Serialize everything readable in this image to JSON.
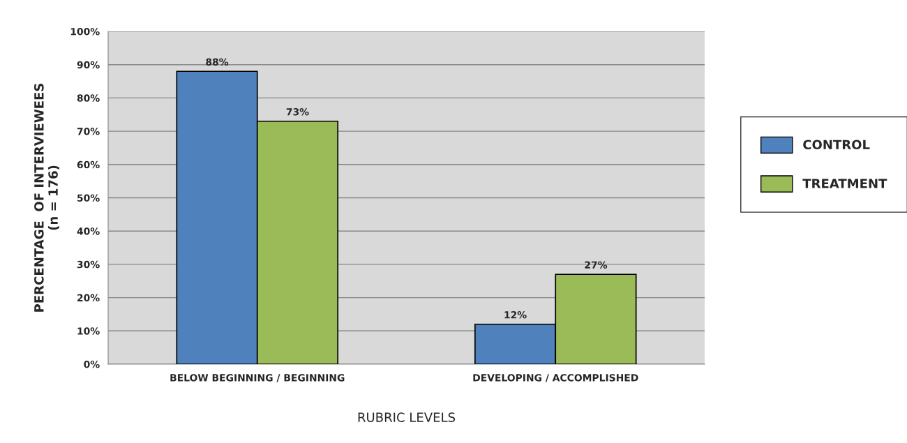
{
  "chart_data": {
    "type": "bar",
    "xlabel": "RUBRIC LEVELS",
    "ylabel": "PERCENTAGE  OF INTERVIEWEES\n(n = 176)",
    "categories": [
      "BELOW BEGINNING / BEGINNING",
      "DEVELOPING / ACCOMPLISHED"
    ],
    "series": [
      {
        "name": "CONTROL",
        "color": "#4f81bd",
        "values": [
          88,
          12
        ],
        "value_labels": [
          "88%",
          "12%"
        ]
      },
      {
        "name": "TREATMENT",
        "color": "#9bbb59",
        "values": [
          73,
          27
        ],
        "value_labels": [
          "73%",
          "27%"
        ]
      }
    ],
    "ylim": [
      0,
      100
    ],
    "yticks": [
      {
        "value": 0,
        "label": "0%"
      },
      {
        "value": 10,
        "label": "10%"
      },
      {
        "value": 20,
        "label": "20%"
      },
      {
        "value": 30,
        "label": "30%"
      },
      {
        "value": 40,
        "label": "40%"
      },
      {
        "value": 50,
        "label": "50%"
      },
      {
        "value": 60,
        "label": "60%"
      },
      {
        "value": 70,
        "label": "70%"
      },
      {
        "value": 80,
        "label": "80%"
      },
      {
        "value": 90,
        "label": "90%"
      },
      {
        "value": 100,
        "label": "100%"
      }
    ],
    "grid": "y",
    "legend": "right"
  }
}
